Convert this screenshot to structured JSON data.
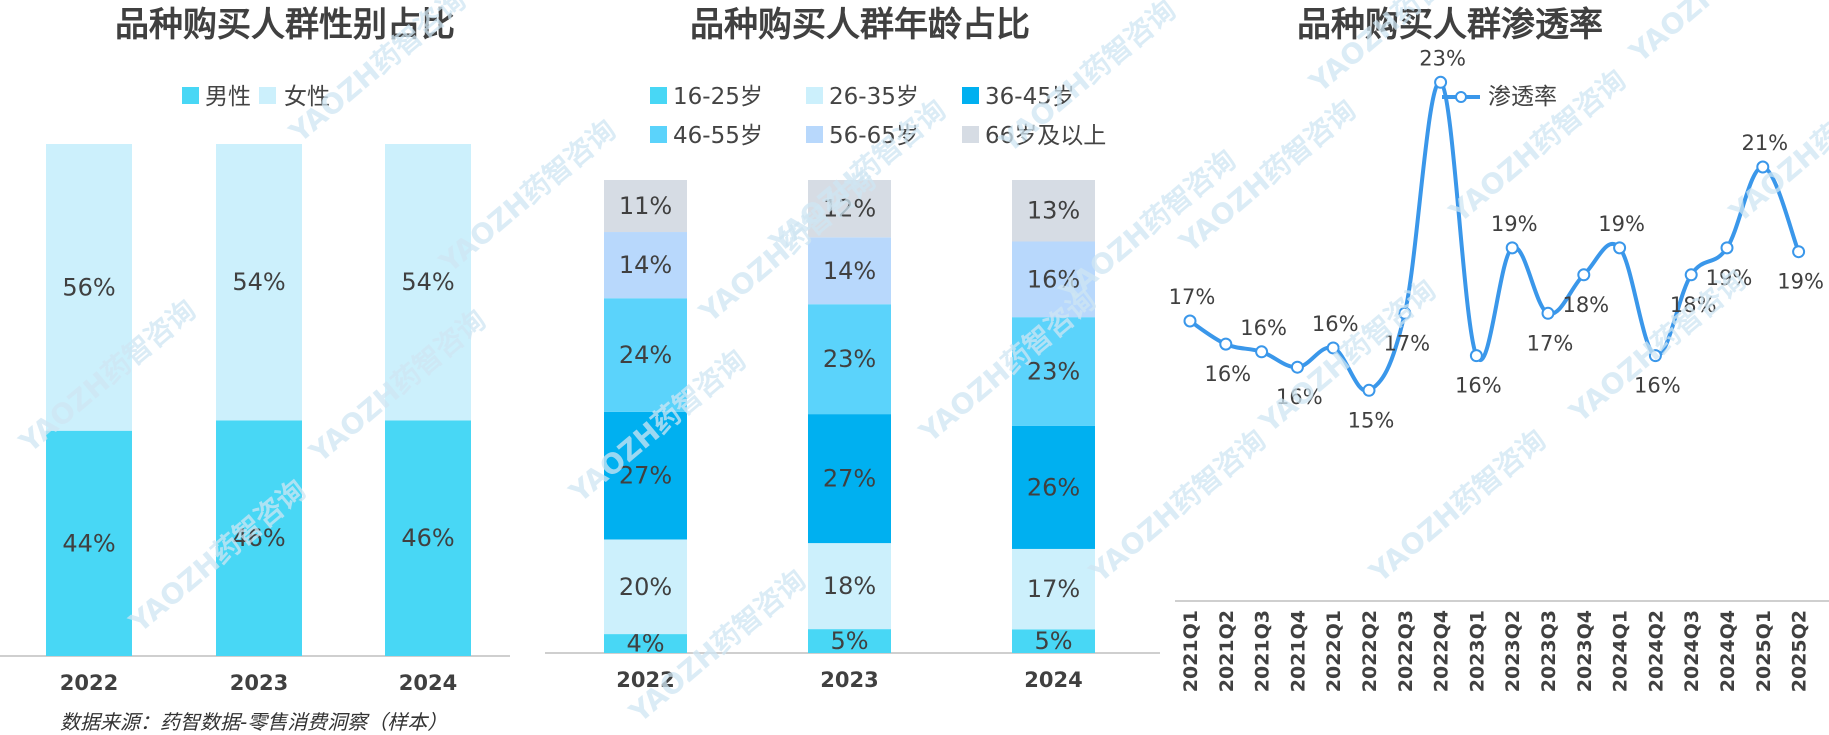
{
  "watermark_text": "YAOZH药智咨询",
  "source": "数据来源：药智数据-零售消费洞察（样本）",
  "colors": {
    "male": "#48d7f5",
    "female": "#ccf0fc",
    "a16": "#48d7f5",
    "a26": "#ccf0fc",
    "a36": "#00b0f0",
    "a46": "#5bd3fb",
    "a56": "#b8d8fc",
    "a66": "#d6dce4",
    "line": "#3a97ea",
    "axis": "#bfbfbf"
  },
  "chart_data": [
    {
      "type": "bar",
      "stacked": true,
      "title": "品种购买人群性别占比",
      "categories": [
        "2022",
        "2023",
        "2024"
      ],
      "series": [
        {
          "name": "男性",
          "color_key": "male",
          "values": [
            44,
            46,
            46
          ],
          "labels": [
            "44%",
            "46%",
            "46%"
          ]
        },
        {
          "name": "女性",
          "color_key": "female",
          "values": [
            56,
            54,
            54
          ],
          "labels": [
            "56%",
            "54%",
            "54%"
          ]
        }
      ],
      "ylim": [
        0,
        100
      ],
      "legend": "top"
    },
    {
      "type": "bar",
      "stacked": true,
      "title": "品种购买人群年龄占比",
      "categories": [
        "2022",
        "2023",
        "2024"
      ],
      "series": [
        {
          "name": "16-25岁",
          "color_key": "a16",
          "values": [
            4,
            5,
            5
          ],
          "labels": [
            "4%",
            "5%",
            "5%"
          ]
        },
        {
          "name": "26-35岁",
          "color_key": "a26",
          "values": [
            20,
            18,
            17
          ],
          "labels": [
            "20%",
            "18%",
            "17%"
          ]
        },
        {
          "name": "36-45岁",
          "color_key": "a36",
          "values": [
            27,
            27,
            26
          ],
          "labels": [
            "27%",
            "27%",
            "26%"
          ]
        },
        {
          "name": "46-55岁",
          "color_key": "a46",
          "values": [
            24,
            23,
            23
          ],
          "labels": [
            "24%",
            "23%",
            "23%"
          ]
        },
        {
          "name": "56-65岁",
          "color_key": "a56",
          "values": [
            14,
            14,
            16
          ],
          "labels": [
            "14%",
            "14%",
            "16%"
          ]
        },
        {
          "name": "66岁及以上",
          "color_key": "a66",
          "values": [
            11,
            12,
            13
          ],
          "labels": [
            "11%",
            "12%",
            "13%"
          ]
        }
      ],
      "ylim": [
        0,
        100
      ],
      "legend": "top"
    },
    {
      "type": "line",
      "title": "品种购买人群渗透率",
      "x": [
        "2021Q1",
        "2021Q2",
        "2021Q3",
        "2021Q4",
        "2022Q1",
        "2022Q2",
        "2022Q3",
        "2022Q4",
        "2023Q1",
        "2023Q2",
        "2023Q3",
        "2023Q4",
        "2024Q1",
        "2024Q2",
        "2024Q3",
        "2024Q4",
        "2025Q1",
        "2025Q2"
      ],
      "series": [
        {
          "name": "渗透率",
          "color_key": "line",
          "values": [
            17.0,
            16.4,
            16.2,
            15.8,
            16.3,
            15.2,
            17.2,
            23.2,
            16.1,
            18.9,
            17.2,
            18.2,
            18.9,
            16.1,
            18.2,
            18.9,
            21.0,
            18.8
          ],
          "labels": [
            "17%",
            "16%",
            "16%",
            "16%",
            "16%",
            "15%",
            "17%",
            "23%",
            "16%",
            "19%",
            "17%",
            "18%",
            "19%",
            "16%",
            "18%",
            "19%",
            "21%",
            "19%"
          ]
        }
      ],
      "legend": "top"
    }
  ]
}
